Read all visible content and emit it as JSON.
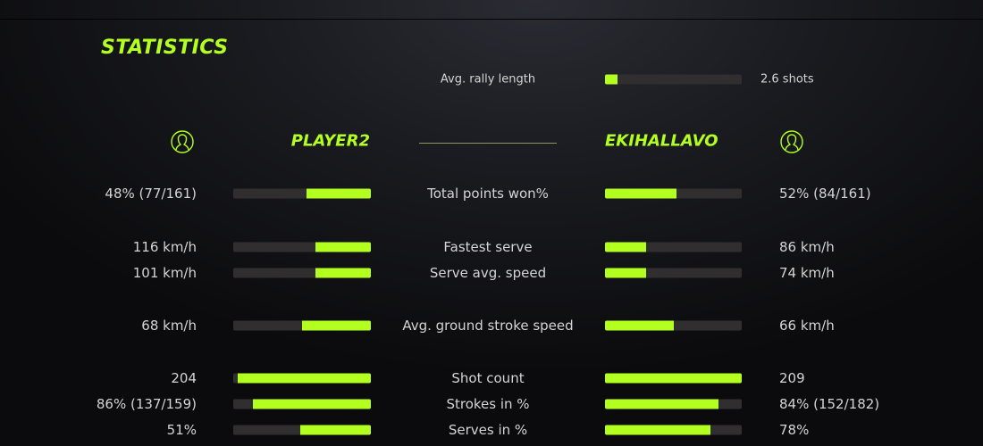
{
  "title": "STATISTICS",
  "accent_color": "#b3ff1f",
  "rally": {
    "label": "Avg. rally length",
    "value": "2.6 shots",
    "fill": 0.09
  },
  "players": {
    "left": {
      "name": "PLAYER2",
      "icon": "user-circle-icon"
    },
    "right": {
      "name": "EKIHALLAVO",
      "icon": "user-circle-icon"
    }
  },
  "stats": [
    {
      "label": "Total points won%",
      "left": "48% (77/161)",
      "right": "52% (84/161)",
      "left_fill": 0.47,
      "right_fill": 0.52
    },
    {
      "label": "Fastest serve",
      "left": "116 km/h",
      "right": "86 km/h",
      "left_fill": 0.4,
      "right_fill": 0.3
    },
    {
      "label": "Serve avg. speed",
      "left": "101 km/h",
      "right": "74 km/h",
      "left_fill": 0.4,
      "right_fill": 0.3
    },
    {
      "label": "Avg. ground stroke speed",
      "left": "68 km/h",
      "right": "66 km/h",
      "left_fill": 0.5,
      "right_fill": 0.5
    },
    {
      "label": "Shot count",
      "left": "204",
      "right": "209",
      "left_fill": 0.97,
      "right_fill": 1.0
    },
    {
      "label": "Strokes in %",
      "left": "86% (137/159)",
      "right": "84% (152/182)",
      "left_fill": 0.86,
      "right_fill": 0.83
    },
    {
      "label": "Serves in %",
      "left": "51%",
      "right": "78%",
      "left_fill": 0.51,
      "right_fill": 0.77
    }
  ]
}
